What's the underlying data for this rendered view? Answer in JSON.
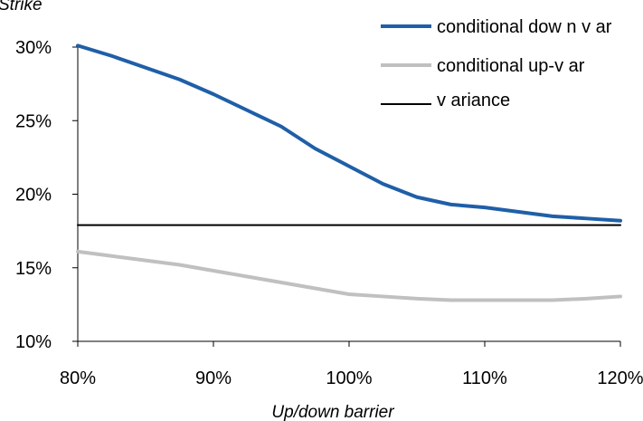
{
  "chart_data": {
    "type": "line",
    "xlabel": "Up/down barrier",
    "ylabel": "Strike",
    "x": [
      80,
      82.5,
      85,
      87.5,
      90,
      92.5,
      95,
      97.5,
      100,
      102.5,
      105,
      107.5,
      110,
      112.5,
      115,
      117.5,
      120
    ],
    "xticks": [
      "80%",
      "90%",
      "100%",
      "110%",
      "120%"
    ],
    "xtick_values": [
      80,
      90,
      100,
      110,
      120
    ],
    "yticks": [
      "10%",
      "15%",
      "20%",
      "25%",
      "30%"
    ],
    "ytick_values": [
      10,
      15,
      20,
      25,
      30
    ],
    "xlim": [
      80,
      120
    ],
    "ylim": [
      10,
      30
    ],
    "grid": false,
    "legend_position": "top-right",
    "series": [
      {
        "name": "conditional dow n v ar",
        "color": "#1f5fa8",
        "values": [
          30.1,
          29.4,
          28.6,
          27.8,
          26.8,
          25.7,
          24.6,
          23.1,
          21.9,
          20.7,
          19.8,
          19.3,
          19.1,
          18.8,
          18.5,
          18.35,
          18.2
        ]
      },
      {
        "name": "conditional up-v ar",
        "color": "#c0c0c0",
        "values": [
          16.1,
          15.8,
          15.5,
          15.2,
          14.8,
          14.4,
          14.0,
          13.6,
          13.2,
          13.05,
          12.9,
          12.8,
          12.8,
          12.8,
          12.8,
          12.9,
          13.05
        ]
      },
      {
        "name": "v ariance",
        "color": "#000000",
        "values": [
          17.9,
          17.9,
          17.9,
          17.9,
          17.9,
          17.9,
          17.9,
          17.9,
          17.9,
          17.9,
          17.9,
          17.9,
          17.9,
          17.9,
          17.9,
          17.9,
          17.9
        ]
      }
    ]
  }
}
